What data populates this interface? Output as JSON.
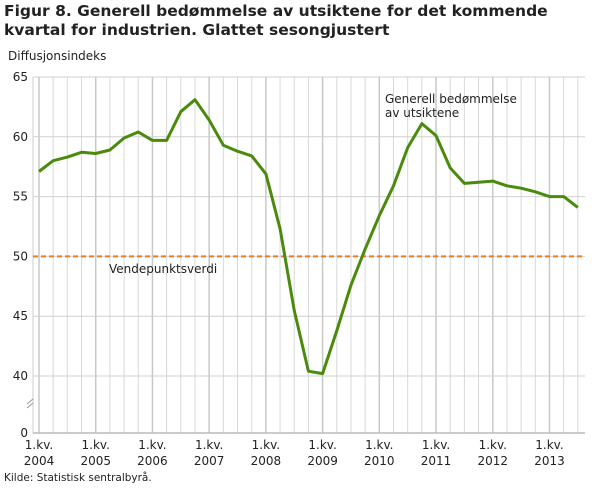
{
  "title": "Figur 8. Generell bedømmelse av utsiktene for det kommende kvartal for industrien. Glattet sesongjustert",
  "source": "Kilde: Statistisk sentralbyrå.",
  "chart_data": {
    "type": "line",
    "title": "Figur 8. Generell bedømmelse av utsiktene for det kommende kvartal for industrien. Glattet sesongjustert",
    "ylabel": "Diffusjonsindeks",
    "xlabel": "",
    "ylim": [
      0,
      65
    ],
    "y_axis_break": [
      0,
      40
    ],
    "yticks": [
      0,
      40,
      45,
      50,
      55,
      60,
      65
    ],
    "xtick_labels": [
      [
        "1.kv.",
        "2004"
      ],
      [
        "1.kv.",
        "2005"
      ],
      [
        "1.kv.",
        "2006"
      ],
      [
        "1.kv.",
        "2007"
      ],
      [
        "1.kv.",
        "2008"
      ],
      [
        "1.kv.",
        "2009"
      ],
      [
        "1.kv.",
        "2010"
      ],
      [
        "1.kv.",
        "2011"
      ],
      [
        "1.kv.",
        "2012"
      ],
      [
        "1.kv.",
        "2013"
      ]
    ],
    "x_start": "2004 Q1",
    "x_end": "2013 Q3",
    "grid": true,
    "series": [
      {
        "name": "Generell bedømmelse av utsiktene",
        "label_lines": [
          "Generell bedømmelse",
          "av utsiktene"
        ],
        "color": "#4a8a0c",
        "values": [
          57.1,
          58.0,
          58.3,
          58.7,
          58.6,
          58.9,
          59.9,
          60.4,
          59.7,
          59.7,
          62.1,
          63.1,
          61.4,
          59.3,
          58.8,
          58.4,
          56.9,
          52.3,
          45.5,
          40.4,
          40.2,
          43.8,
          47.6,
          50.6,
          53.4,
          55.9,
          59.1,
          61.1,
          60.1,
          57.4,
          56.1,
          56.2,
          56.3,
          55.9,
          55.7,
          55.4,
          55.0,
          55.0,
          54.1
        ]
      }
    ],
    "reference_line": {
      "name": "Vendepunktsverdi",
      "value": 50,
      "color": "#f07d22",
      "style": "dashed"
    }
  }
}
